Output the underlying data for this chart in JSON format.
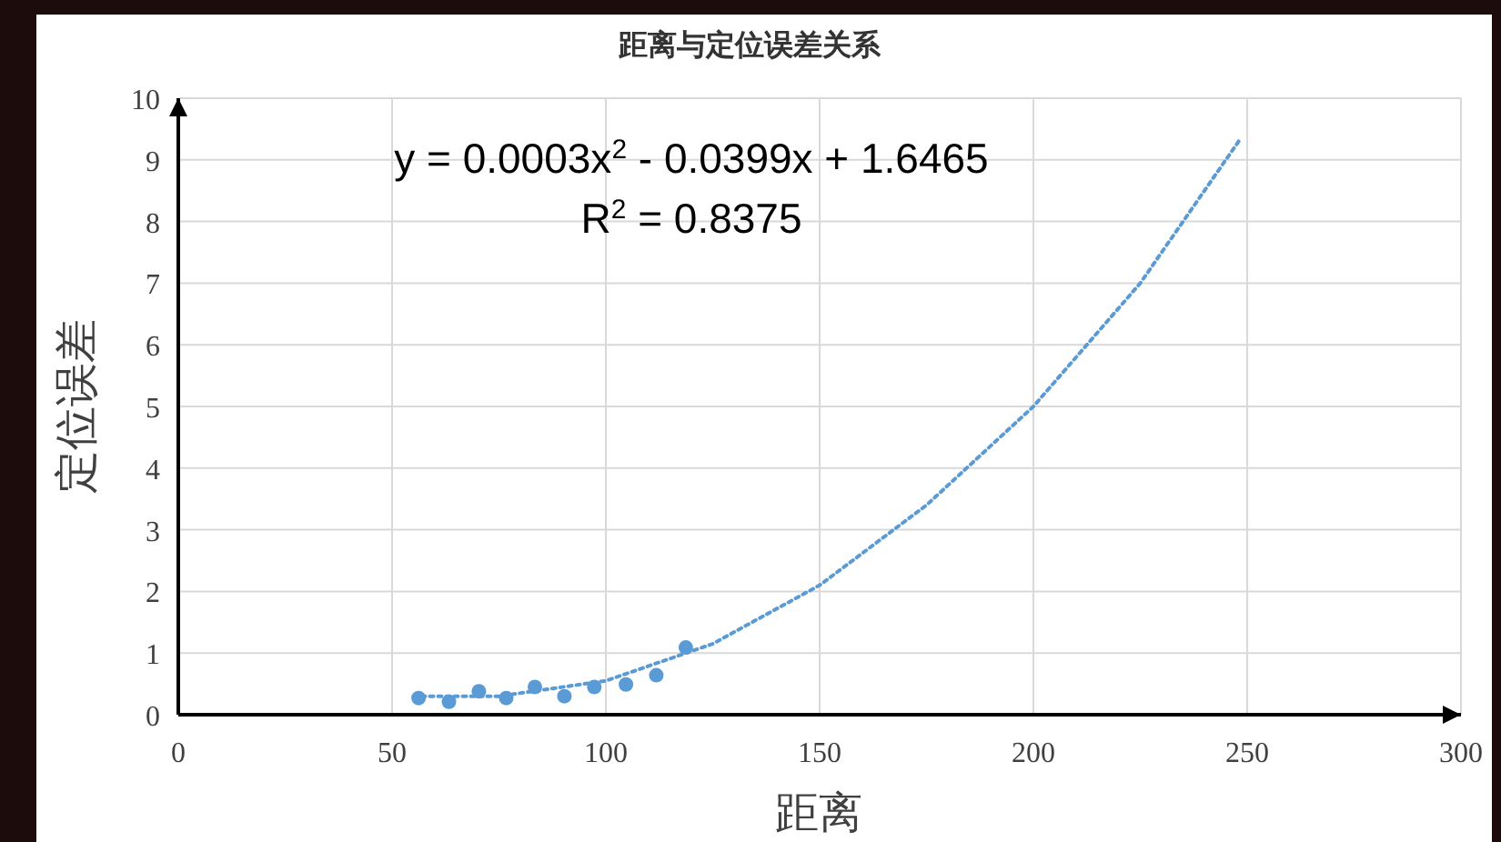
{
  "chart_data": {
    "type": "scatter",
    "title": "距离与定位误差关系",
    "xlabel": "距离",
    "ylabel": "定位误差",
    "annotations": [
      "y = 0.0003x$^{2}$ - 0.0399x + 1.6465",
      "R$^{2}$ = 0.8375"
    ],
    "xlim": [
      0,
      300
    ],
    "ylim": [
      0,
      10
    ],
    "xticks": [
      0,
      50,
      100,
      150,
      200,
      250,
      300
    ],
    "yticks": [
      0,
      1,
      2,
      3,
      4,
      5,
      6,
      7,
      8,
      9,
      10
    ],
    "grid": true,
    "series": [
      {
        "marker": "circle",
        "color": "#5b9bd5",
        "x": [
          56.2,
          63.3,
          70.3,
          76.7,
          83.4,
          90.3,
          97.3,
          104.7,
          111.8,
          118.7
        ],
        "values": [
          0.27,
          0.21,
          0.38,
          0.27,
          0.45,
          0.3,
          0.45,
          0.49,
          0.64,
          1.09
        ]
      },
      {
        "type": "line",
        "marker": "none",
        "line_style": "dotted",
        "color": "#5b9bd5",
        "x": [
          55,
          75,
          100,
          125,
          150,
          175,
          200,
          225,
          248
        ],
        "values": [
          0.3,
          0.3,
          0.55,
          1.15,
          2.1,
          3.4,
          5.0,
          7.0,
          9.3
        ]
      }
    ]
  }
}
